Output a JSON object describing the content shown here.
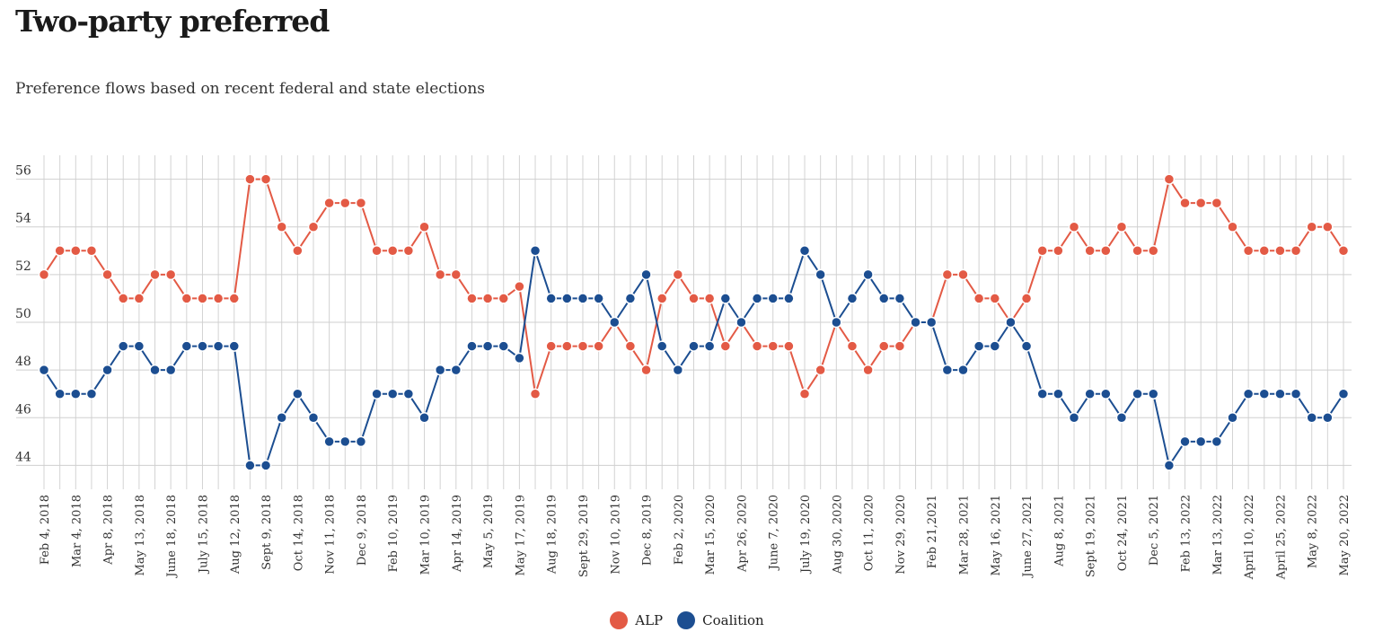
{
  "chart_data": {
    "type": "line",
    "title": "Two-party preferred",
    "subtitle": "Preference flows based on recent federal and state elections",
    "xlabel": "",
    "ylabel": "",
    "ylim": [
      43,
      57
    ],
    "yticks": [
      44,
      46,
      48,
      50,
      52,
      54,
      56
    ],
    "grid": true,
    "legend_position": "bottom-center",
    "tick_labels": [
      "Feb 4, 2018",
      "Mar 4, 2018",
      "Apr 8, 2018",
      "May 13, 2018",
      "June 18, 2018",
      "July 15, 2018",
      "Aug 12, 2018",
      "Sept 9, 2018",
      "Oct 14, 2018",
      "Nov 11, 2018",
      "Dec 9, 2018",
      "Feb 10, 2019",
      "Mar 10, 2019",
      "Apr 14, 2019",
      "May 5, 2019",
      "May 17, 2019",
      "Aug 18, 2019",
      "Sept 29, 2019",
      "Nov 10, 2019",
      "Dec 8, 2019",
      "Feb 2, 2020",
      "Mar 15, 2020",
      "Apr 26, 2020",
      "June 7, 2020",
      "July 19, 2020",
      "Aug 30, 2020",
      "Oct 11, 2020",
      "Nov 29, 2020",
      "Feb 21,2021",
      "Mar 28, 2021",
      "May 16, 2021",
      "June 27, 2021",
      "Aug 8, 2021",
      "Sept 19, 2021",
      "Oct 24, 2021",
      "Dec 5, 2021",
      "Feb 13, 2022",
      "Mar 13, 2022",
      "April 10, 2022",
      "April 25, 2022",
      "May 8, 2022",
      "May 20, 2022"
    ],
    "series": [
      {
        "name": "ALP",
        "color": "#e35a45",
        "values": [
          52,
          53,
          53,
          53,
          52,
          51,
          51,
          52,
          52,
          51,
          51,
          51,
          51,
          56,
          56,
          54,
          53,
          54,
          55,
          55,
          55,
          53,
          53,
          53,
          54,
          52,
          52,
          51,
          51,
          51,
          51.5,
          47,
          49,
          49,
          49,
          49,
          50,
          49,
          48,
          51,
          52,
          51,
          51,
          49,
          50,
          49,
          49,
          49,
          47,
          48,
          50,
          49,
          48,
          49,
          49,
          50,
          50,
          52,
          52,
          51,
          51,
          50,
          51,
          53,
          53,
          54,
          53,
          53,
          54,
          53,
          53,
          56,
          55,
          55,
          55,
          54,
          53,
          53,
          53,
          53,
          54,
          54,
          53
        ]
      },
      {
        "name": "Coalition",
        "color": "#1c4e91",
        "values": [
          48,
          47,
          47,
          47,
          48,
          49,
          49,
          48,
          48,
          49,
          49,
          49,
          49,
          44,
          44,
          46,
          47,
          46,
          45,
          45,
          45,
          47,
          47,
          47,
          46,
          48,
          48,
          49,
          49,
          49,
          48.5,
          53,
          51,
          51,
          51,
          51,
          50,
          51,
          52,
          49,
          48,
          49,
          49,
          51,
          50,
          51,
          51,
          51,
          53,
          52,
          50,
          51,
          52,
          51,
          51,
          50,
          50,
          48,
          48,
          49,
          49,
          50,
          49,
          47,
          47,
          46,
          47,
          47,
          46,
          47,
          47,
          44,
          45,
          45,
          45,
          46,
          47,
          47,
          47,
          47,
          46,
          46,
          47
        ]
      }
    ]
  }
}
